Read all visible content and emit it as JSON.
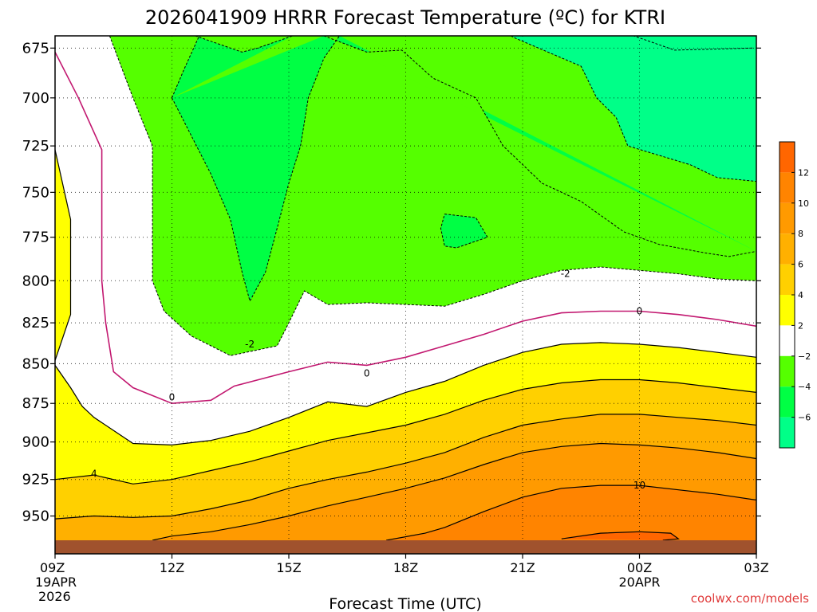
{
  "chart_data": {
    "type": "contour",
    "title": "2026041909 HRRR Forecast Temperature (ºC) for KTRI",
    "xlabel": "Forecast Time (UTC)",
    "ylabel": "",
    "credit": "coolwx.com/models",
    "y_axis": {
      "scale": "log",
      "reversed": true,
      "range": [
        967,
        669
      ],
      "ticks": [
        "675",
        "700",
        "725",
        "750",
        "775",
        "800",
        "825",
        "850",
        "875",
        "900",
        "925",
        "950"
      ]
    },
    "x_axis": {
      "range_hours": [
        9,
        27
      ],
      "ticks": [
        {
          "hour": 9,
          "line1": "09Z",
          "line2": "19APR",
          "line3": "2026"
        },
        {
          "hour": 12,
          "line1": "12Z"
        },
        {
          "hour": 15,
          "line1": "15Z"
        },
        {
          "hour": 18,
          "line1": "18Z"
        },
        {
          "hour": 21,
          "line1": "21Z"
        },
        {
          "hour": 24,
          "line1": "00Z",
          "line2": "20APR"
        },
        {
          "hour": 27,
          "line1": "03Z"
        }
      ]
    },
    "grid": true,
    "colorbar": {
      "placement": "right",
      "ticks": [
        "12",
        "10",
        "8",
        "6",
        "4",
        "2",
        "−2",
        "−4",
        "−6"
      ],
      "bands": [
        {
          "from": 12,
          "to": 14,
          "color": "#ff6600"
        },
        {
          "from": 10,
          "to": 12,
          "color": "#ff8400"
        },
        {
          "from": 8,
          "to": 10,
          "color": "#ff9a00"
        },
        {
          "from": 6,
          "to": 8,
          "color": "#ffb000"
        },
        {
          "from": 4,
          "to": 6,
          "color": "#ffd000"
        },
        {
          "from": 2,
          "to": 4,
          "color": "#ffff00"
        },
        {
          "from": -2,
          "to": 2,
          "color": "#ffffff"
        },
        {
          "from": -4,
          "to": -2,
          "color": "#55ff00"
        },
        {
          "from": -6,
          "to": -4,
          "color": "#00ff44"
        },
        {
          "from": -8,
          "to": -6,
          "color": "#00ff88"
        }
      ]
    },
    "contour_labels": [
      {
        "text": "-2",
        "hour": 22.1,
        "pressure": 796
      },
      {
        "text": "0",
        "hour": 24.0,
        "pressure": 818
      },
      {
        "text": "-2",
        "hour": 14.0,
        "pressure": 838
      },
      {
        "text": "0",
        "hour": 17.0,
        "pressure": 856
      },
      {
        "text": "0",
        "hour": 12.0,
        "pressure": 871
      },
      {
        "text": "4",
        "hour": 10.0,
        "pressure": 921
      },
      {
        "text": "10",
        "hour": 24.0,
        "pressure": 929
      }
    ],
    "isotherms": {
      "t_minus6": [
        [
          26.9,
          675
        ],
        [
          24.9,
          676
        ],
        [
          23.7,
          668
        ],
        [
          23.3,
          669
        ]
      ],
      "t_minus4_north": [
        [
          12.6,
          669
        ],
        [
          13.8,
          677
        ],
        [
          14.2,
          675
        ],
        [
          15.1,
          669
        ]
      ],
      "t_minus4_main": [
        [
          20.7,
          669
        ],
        [
          20.8,
          670
        ],
        [
          22.5,
          684
        ],
        [
          22.9,
          700
        ],
        [
          23.4,
          710
        ],
        [
          23.7,
          725
        ],
        [
          24.5,
          730
        ],
        [
          25.3,
          735
        ],
        [
          26.0,
          742
        ],
        [
          27.0,
          744
        ]
      ],
      "t_minus4_west": [
        [
          12.0,
          700
        ],
        [
          12.3,
          686
        ],
        [
          12.7,
          669
        ]
      ],
      "t_minus4_east_edge": [
        [
          15.9,
          669
        ],
        [
          17.0,
          677
        ],
        [
          17.9,
          676
        ],
        [
          18.7,
          690
        ],
        [
          19.8,
          700
        ],
        [
          20.5,
          725
        ],
        [
          21.5,
          745
        ],
        [
          22.5,
          755
        ],
        [
          23.6,
          772
        ],
        [
          24.5,
          779
        ],
        [
          25.7,
          784
        ],
        [
          26.3,
          786
        ],
        [
          27.0,
          783
        ]
      ],
      "t_minus4_tongue": [
        [
          12.0,
          700
        ],
        [
          13.0,
          740
        ],
        [
          13.5,
          765
        ],
        [
          13.8,
          795
        ],
        [
          14.0,
          812
        ],
        [
          14.4,
          795
        ],
        [
          14.7,
          770
        ],
        [
          15.0,
          745
        ],
        [
          15.3,
          725
        ],
        [
          15.5,
          700
        ],
        [
          15.9,
          680
        ],
        [
          16.3,
          669
        ]
      ],
      "t_minus4_island": [
        [
          19.0,
          762
        ],
        [
          19.8,
          764
        ],
        [
          20.1,
          775
        ],
        [
          19.3,
          781
        ],
        [
          19.0,
          780
        ],
        [
          18.9,
          770
        ],
        [
          19.0,
          762
        ]
      ],
      "t_minus2": [
        [
          10.4,
          669
        ],
        [
          11.0,
          700
        ],
        [
          11.5,
          725
        ],
        [
          11.5,
          775
        ],
        [
          11.5,
          800
        ],
        [
          11.8,
          818
        ],
        [
          12.5,
          833
        ],
        [
          13.5,
          845
        ],
        [
          14.7,
          839
        ],
        [
          15.0,
          825
        ],
        [
          15.4,
          806
        ],
        [
          16.0,
          814
        ],
        [
          17.0,
          813
        ],
        [
          18.0,
          814
        ],
        [
          19.0,
          815
        ],
        [
          20.0,
          808
        ],
        [
          21.0,
          800
        ],
        [
          22.0,
          794
        ],
        [
          23.0,
          792
        ],
        [
          24.0,
          794
        ],
        [
          25.0,
          796
        ],
        [
          26.0,
          799
        ],
        [
          27.0,
          800
        ]
      ],
      "t_zero": [
        [
          9.0,
          677
        ],
        [
          9.6,
          700
        ],
        [
          10.2,
          727
        ],
        [
          10.2,
          750
        ],
        [
          10.2,
          800
        ],
        [
          10.3,
          825
        ],
        [
          10.5,
          855
        ],
        [
          11.0,
          865
        ],
        [
          12.0,
          875
        ],
        [
          13.0,
          873
        ],
        [
          13.6,
          864
        ],
        [
          15.0,
          855
        ],
        [
          16.0,
          849
        ],
        [
          17.0,
          851
        ],
        [
          18.0,
          846
        ],
        [
          19.0,
          839
        ],
        [
          20.0,
          832
        ],
        [
          21.0,
          824
        ],
        [
          22.0,
          819
        ],
        [
          23.0,
          818
        ],
        [
          24.0,
          818
        ],
        [
          25.0,
          820
        ],
        [
          26.0,
          823
        ],
        [
          27.0,
          827
        ]
      ],
      "t_two": [
        [
          9.0,
          851
        ],
        [
          9.4,
          865
        ],
        [
          9.7,
          877
        ],
        [
          10.0,
          884
        ],
        [
          11.0,
          901
        ],
        [
          12.0,
          902
        ],
        [
          13.0,
          899
        ],
        [
          14.0,
          893
        ],
        [
          15.0,
          884
        ],
        [
          16.0,
          874
        ],
        [
          17.0,
          877
        ],
        [
          18.0,
          868
        ],
        [
          19.0,
          861
        ],
        [
          20.0,
          851
        ],
        [
          21.0,
          843
        ],
        [
          22.0,
          838
        ],
        [
          23.0,
          837
        ],
        [
          24.0,
          838
        ],
        [
          25.0,
          840
        ],
        [
          26.0,
          843
        ],
        [
          27.0,
          846
        ]
      ],
      "t_two_west": [
        [
          9.0,
          727
        ],
        [
          9.4,
          765
        ],
        [
          9.4,
          820
        ],
        [
          9.0,
          848
        ]
      ],
      "t_four": [
        [
          9.0,
          925
        ],
        [
          10.0,
          922
        ],
        [
          11.0,
          928
        ],
        [
          12.0,
          925
        ],
        [
          13.0,
          919
        ],
        [
          14.0,
          913
        ],
        [
          15.0,
          906
        ],
        [
          16.0,
          899
        ],
        [
          17.0,
          894
        ],
        [
          18.0,
          889
        ],
        [
          19.0,
          882
        ],
        [
          20.0,
          873
        ],
        [
          21.0,
          866
        ],
        [
          22.0,
          862
        ],
        [
          23.0,
          860
        ],
        [
          24.0,
          860
        ],
        [
          25.0,
          862
        ],
        [
          26.0,
          865
        ],
        [
          27.0,
          868
        ]
      ],
      "t_six": [
        [
          9.0,
          952
        ],
        [
          10.0,
          950
        ],
        [
          11.0,
          951
        ],
        [
          12.0,
          950
        ],
        [
          13.0,
          945
        ],
        [
          14.0,
          939
        ],
        [
          15.0,
          931
        ],
        [
          16.0,
          925
        ],
        [
          17.0,
          920
        ],
        [
          18.0,
          914
        ],
        [
          19.0,
          907
        ],
        [
          20.0,
          897
        ],
        [
          21.0,
          889
        ],
        [
          22.0,
          885
        ],
        [
          23.0,
          882
        ],
        [
          24.0,
          882
        ],
        [
          25.0,
          884
        ],
        [
          26.0,
          886
        ],
        [
          27.0,
          889
        ]
      ],
      "t_eight": [
        [
          11.5,
          967
        ],
        [
          12.0,
          964
        ],
        [
          13.0,
          961
        ],
        [
          14.0,
          956
        ],
        [
          15.0,
          950
        ],
        [
          16.0,
          943
        ],
        [
          17.0,
          937
        ],
        [
          18.0,
          931
        ],
        [
          19.0,
          924
        ],
        [
          20.0,
          915
        ],
        [
          21.0,
          907
        ],
        [
          22.0,
          903
        ],
        [
          23.0,
          901
        ],
        [
          24.0,
          902
        ],
        [
          25.0,
          904
        ],
        [
          26.0,
          907
        ],
        [
          27.0,
          911
        ]
      ],
      "t_ten": [
        [
          17.5,
          967
        ],
        [
          18.5,
          962
        ],
        [
          19.0,
          958
        ],
        [
          20.0,
          947
        ],
        [
          21.0,
          937
        ],
        [
          22.0,
          931
        ],
        [
          23.0,
          929
        ],
        [
          24.0,
          929
        ],
        [
          25.0,
          932
        ],
        [
          26.0,
          935
        ],
        [
          27.0,
          939
        ]
      ],
      "t_twelve": [
        [
          22.0,
          966
        ],
        [
          23.0,
          962
        ],
        [
          24.0,
          961
        ],
        [
          24.8,
          962
        ],
        [
          25.0,
          966
        ],
        [
          24.6,
          967
        ]
      ]
    }
  }
}
